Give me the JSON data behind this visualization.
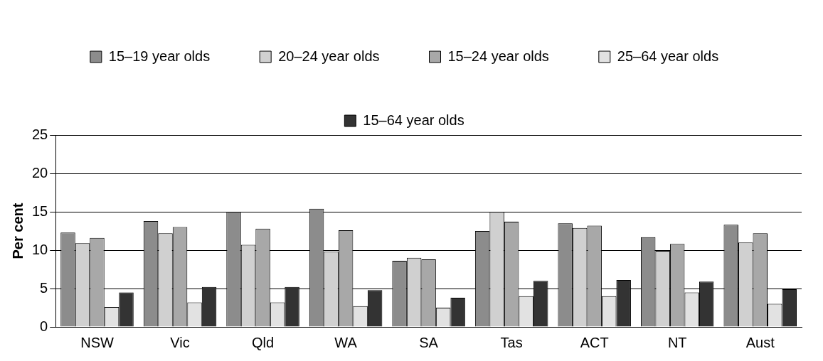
{
  "chart_data": {
    "type": "bar",
    "ylabel": "Per cent",
    "categories": [
      "NSW",
      "Vic",
      "Qld",
      "WA",
      "SA",
      "Tas",
      "ACT",
      "NT",
      "Aust"
    ],
    "series": [
      {
        "name": "15–19 year olds",
        "color": "#8c8c8c",
        "values": [
          12.3,
          13.8,
          15.0,
          15.4,
          8.6,
          12.5,
          13.5,
          11.7,
          13.3
        ]
      },
      {
        "name": "20–24 year olds",
        "color": "#d0d0d0",
        "values": [
          10.9,
          12.2,
          10.7,
          9.8,
          9.0,
          15.0,
          12.9,
          9.9,
          11.0
        ]
      },
      {
        "name": "15–24 year olds",
        "color": "#a8a8a8",
        "values": [
          11.6,
          13.0,
          12.8,
          12.6,
          8.8,
          13.7,
          13.2,
          10.8,
          12.2
        ]
      },
      {
        "name": "25–64 year olds",
        "color": "#e2e2e2",
        "values": [
          2.6,
          3.2,
          3.2,
          2.7,
          2.5,
          4.0,
          4.0,
          4.5,
          3.0
        ]
      },
      {
        "name": "15–64 year olds",
        "color": "#333333",
        "values": [
          4.5,
          5.2,
          5.2,
          4.8,
          3.8,
          6.0,
          6.1,
          5.9,
          4.9
        ]
      }
    ],
    "ylim": [
      0,
      25
    ],
    "yticks": [
      0,
      5,
      10,
      15,
      20,
      25
    ],
    "grid": "y",
    "legend": "top"
  }
}
